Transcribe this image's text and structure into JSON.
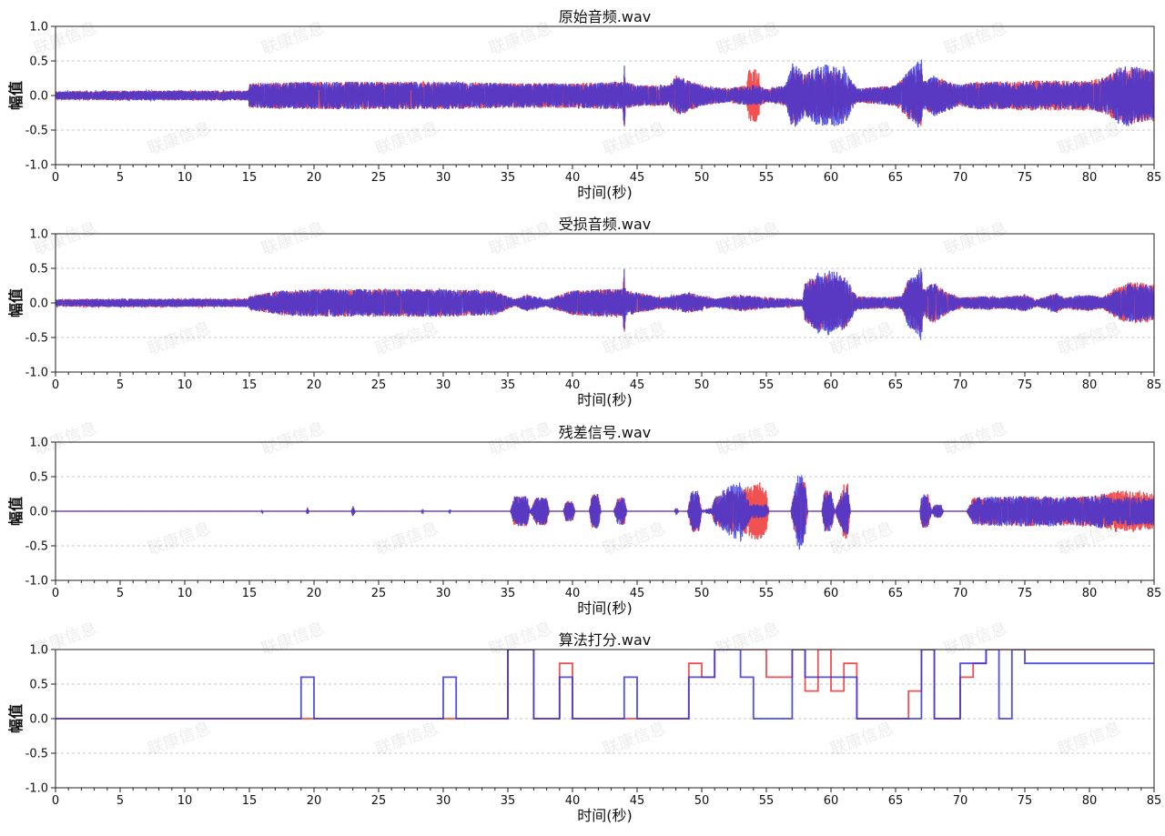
{
  "chart_data": [
    {
      "type": "line",
      "title": "原始音频.wav",
      "xlabel": "时间(秒)",
      "ylabel": "幅值",
      "xlim": [
        0,
        85
      ],
      "ylim": [
        -1.0,
        1.0
      ],
      "xticks": [
        0,
        5,
        10,
        15,
        20,
        25,
        30,
        35,
        40,
        45,
        50,
        55,
        60,
        65,
        70,
        75,
        80,
        85
      ],
      "yticks": [
        -1.0,
        -0.5,
        0.0,
        0.5,
        1.0
      ],
      "grid": true,
      "render": "waveform",
      "series": [
        {
          "color": "#ee3333",
          "x": [
            0,
            5,
            10,
            14.9,
            15,
            20,
            25,
            30,
            35,
            40,
            43.9,
            44,
            44.1,
            45,
            47.5,
            48,
            50,
            52,
            53.5,
            53.6,
            54,
            54.4,
            54.5,
            55,
            56.5,
            57,
            58,
            59,
            60,
            61,
            62,
            65,
            66,
            67,
            67.1,
            68,
            70,
            71,
            72,
            75,
            80,
            81.5,
            82,
            83,
            84,
            85
          ],
          "envelope": [
            0.06,
            0.07,
            0.07,
            0.07,
            0.18,
            0.2,
            0.2,
            0.2,
            0.18,
            0.18,
            0.2,
            0.5,
            0.2,
            0.15,
            0.15,
            0.3,
            0.15,
            0.1,
            0.15,
            0.38,
            0.38,
            0.38,
            0.15,
            0.1,
            0.15,
            0.42,
            0.3,
            0.35,
            0.35,
            0.33,
            0.1,
            0.15,
            0.35,
            0.45,
            0.2,
            0.28,
            0.15,
            0.2,
            0.2,
            0.22,
            0.22,
            0.28,
            0.38,
            0.42,
            0.4,
            0.38
          ]
        },
        {
          "color": "#3333dd",
          "x": [
            0,
            5,
            10,
            14.9,
            15,
            20,
            25,
            30,
            35,
            40,
            43.9,
            44,
            44.1,
            45,
            47.5,
            48,
            50,
            52,
            53.5,
            54.5,
            55,
            56.5,
            57,
            58,
            59,
            60,
            61,
            62,
            65,
            66,
            67,
            67.1,
            68,
            70,
            71,
            72,
            75,
            80,
            81.5,
            82,
            83,
            84,
            85
          ],
          "envelope": [
            0.06,
            0.07,
            0.07,
            0.07,
            0.18,
            0.2,
            0.2,
            0.2,
            0.18,
            0.18,
            0.2,
            0.5,
            0.2,
            0.15,
            0.15,
            0.3,
            0.15,
            0.1,
            0.15,
            0.15,
            0.1,
            0.15,
            0.5,
            0.3,
            0.45,
            0.45,
            0.43,
            0.1,
            0.15,
            0.35,
            0.55,
            0.2,
            0.3,
            0.15,
            0.2,
            0.2,
            0.2,
            0.2,
            0.28,
            0.4,
            0.45,
            0.4,
            0.36
          ]
        }
      ]
    },
    {
      "type": "line",
      "title": "受损音频.wav",
      "xlabel": "时间(秒)",
      "ylabel": "幅值",
      "xlim": [
        0,
        85
      ],
      "ylim": [
        -1.0,
        1.0
      ],
      "xticks": [
        0,
        5,
        10,
        15,
        20,
        25,
        30,
        35,
        40,
        45,
        50,
        55,
        60,
        65,
        70,
        75,
        80,
        85
      ],
      "yticks": [
        -1.0,
        -0.5,
        0.0,
        0.5,
        1.0
      ],
      "grid": true,
      "render": "waveform",
      "series": [
        {
          "color": "#ee3333",
          "x": [
            0,
            5,
            10,
            14.9,
            15,
            17.5,
            20,
            25,
            30,
            34,
            35.5,
            36.5,
            38,
            40,
            42,
            43.9,
            44,
            44.1,
            45,
            47,
            49,
            51,
            53,
            55,
            57.8,
            58,
            59,
            60,
            61,
            62,
            64,
            65.5,
            66,
            67,
            67.1,
            68,
            69,
            70,
            72,
            73,
            75,
            76,
            77.5,
            78,
            80,
            81,
            82,
            83,
            84,
            85
          ],
          "envelope": [
            0.05,
            0.06,
            0.06,
            0.06,
            0.1,
            0.18,
            0.2,
            0.2,
            0.2,
            0.18,
            0.05,
            0.12,
            0.05,
            0.18,
            0.2,
            0.2,
            0.5,
            0.2,
            0.15,
            0.08,
            0.15,
            0.06,
            0.12,
            0.08,
            0.05,
            0.3,
            0.4,
            0.42,
            0.38,
            0.1,
            0.08,
            0.1,
            0.35,
            0.45,
            0.2,
            0.3,
            0.15,
            0.08,
            0.1,
            0.08,
            0.12,
            0.05,
            0.15,
            0.08,
            0.12,
            0.08,
            0.22,
            0.3,
            0.3,
            0.28
          ]
        },
        {
          "color": "#3333dd",
          "x": [
            0,
            5,
            10,
            14.9,
            15,
            17.5,
            20,
            25,
            30,
            34,
            35.5,
            36.5,
            38,
            40,
            42,
            43.9,
            44,
            44.1,
            45,
            47,
            49,
            51,
            53,
            55,
            57.8,
            58,
            59,
            60,
            61,
            62,
            64,
            65.5,
            66,
            67,
            67.1,
            68,
            69,
            70,
            72,
            73,
            75,
            76,
            77.5,
            78,
            80,
            81,
            82,
            83,
            84,
            85
          ],
          "envelope": [
            0.05,
            0.06,
            0.06,
            0.06,
            0.1,
            0.18,
            0.2,
            0.2,
            0.2,
            0.18,
            0.05,
            0.12,
            0.05,
            0.18,
            0.2,
            0.2,
            0.5,
            0.2,
            0.15,
            0.08,
            0.15,
            0.06,
            0.12,
            0.08,
            0.05,
            0.3,
            0.45,
            0.47,
            0.43,
            0.1,
            0.08,
            0.1,
            0.35,
            0.55,
            0.2,
            0.3,
            0.15,
            0.08,
            0.1,
            0.08,
            0.12,
            0.05,
            0.15,
            0.08,
            0.12,
            0.08,
            0.2,
            0.28,
            0.28,
            0.25
          ]
        }
      ]
    },
    {
      "type": "line",
      "title": "残差信号.wav",
      "xlabel": "时间(秒)",
      "ylabel": "幅值",
      "xlim": [
        0,
        85
      ],
      "ylim": [
        -1.0,
        1.0
      ],
      "xticks": [
        0,
        5,
        10,
        15,
        20,
        25,
        30,
        35,
        40,
        45,
        50,
        55,
        60,
        65,
        70,
        75,
        80,
        85
      ],
      "yticks": [
        -1.0,
        -0.5,
        0.0,
        0.5,
        1.0
      ],
      "grid": true,
      "render": "waveform",
      "series": [
        {
          "color": "#ee3333",
          "x": [
            0,
            19.4,
            19.5,
            19.6,
            22.9,
            23,
            23.2,
            35.2,
            35.5,
            36.5,
            36.7,
            37.2,
            38,
            38.2,
            39.3,
            39.5,
            40,
            40.2,
            41.3,
            41.5,
            42,
            42.2,
            43.2,
            43.5,
            44,
            44.2,
            47.9,
            48,
            48.2,
            48.9,
            49.2,
            49.8,
            50,
            50.8,
            51,
            52,
            53,
            54,
            54.5,
            55,
            55.2,
            56.9,
            57,
            57.5,
            58,
            58.2,
            59.3,
            59.5,
            60,
            60.3,
            61,
            61.3,
            61.5,
            66.9,
            67,
            67.5,
            67.8,
            68,
            68.5,
            68.7,
            70.5,
            71,
            73,
            75,
            77,
            80,
            81,
            82,
            83,
            84,
            85
          ],
          "envelope": [
            0,
            0,
            0.06,
            0,
            0,
            0.08,
            0,
            0,
            0.22,
            0.22,
            0,
            0.2,
            0.2,
            0,
            0,
            0.15,
            0.15,
            0,
            0,
            0.25,
            0.25,
            0,
            0,
            0.2,
            0.2,
            0,
            0,
            0.06,
            0,
            0,
            0.3,
            0.3,
            0,
            0.05,
            0.2,
            0.3,
            0.3,
            0.42,
            0.42,
            0.3,
            0,
            0,
            0.15,
            0.45,
            0.45,
            0,
            0,
            0.3,
            0.3,
            0,
            0.4,
            0.4,
            0,
            0,
            0.25,
            0.25,
            0,
            0.1,
            0.1,
            0,
            0,
            0.2,
            0.2,
            0.22,
            0.2,
            0.22,
            0.25,
            0.3,
            0.3,
            0.3,
            0.25
          ]
        },
        {
          "color": "#3333dd",
          "x": [
            0,
            15.9,
            16,
            16.1,
            19.4,
            19.5,
            19.6,
            22.9,
            23,
            23.2,
            28.3,
            28.4,
            28.5,
            30.4,
            30.5,
            30.6,
            35.2,
            35.5,
            36.5,
            36.7,
            37.2,
            38,
            38.2,
            39.3,
            39.5,
            40,
            40.2,
            41.3,
            41.5,
            42,
            42.2,
            43.2,
            43.5,
            44,
            44.2,
            47.9,
            48,
            48.2,
            48.9,
            49.2,
            49.8,
            50,
            50.8,
            51,
            52,
            53,
            53.8,
            54,
            54.5,
            55,
            55.2,
            56.9,
            57,
            57.5,
            58,
            58.2,
            59.3,
            59.5,
            60,
            60.3,
            61,
            61.3,
            61.5,
            66.9,
            67,
            67.5,
            67.8,
            68,
            68.5,
            68.7,
            70.5,
            71,
            73,
            75,
            77,
            79,
            80,
            81,
            82,
            83,
            84,
            85
          ],
          "envelope": [
            0,
            0,
            0.03,
            0,
            0,
            0.06,
            0,
            0,
            0.08,
            0,
            0,
            0.05,
            0,
            0,
            0.05,
            0,
            0,
            0.22,
            0.22,
            0,
            0.2,
            0.2,
            0,
            0,
            0.15,
            0.15,
            0,
            0,
            0.25,
            0.25,
            0,
            0,
            0.2,
            0.2,
            0,
            0,
            0.06,
            0,
            0,
            0.3,
            0.3,
            0,
            0.05,
            0.2,
            0.35,
            0.45,
            0.1,
            0.1,
            0.1,
            0.1,
            0,
            0,
            0.15,
            0.58,
            0.45,
            0,
            0,
            0.3,
            0.3,
            0,
            0.35,
            0.35,
            0,
            0,
            0.25,
            0.25,
            0,
            0.1,
            0.1,
            0,
            0,
            0.2,
            0.22,
            0.22,
            0.22,
            0.2,
            0.22,
            0.25,
            0.18,
            0.22,
            0.2,
            0.2
          ]
        }
      ]
    },
    {
      "type": "line",
      "title": "算法打分.wav",
      "xlabel": "时间(秒)",
      "ylabel": "幅值",
      "xlim": [
        0,
        85
      ],
      "ylim": [
        -1.0,
        1.0
      ],
      "xticks": [
        0,
        5,
        10,
        15,
        20,
        25,
        30,
        35,
        40,
        45,
        50,
        55,
        60,
        65,
        70,
        75,
        80,
        85
      ],
      "yticks": [
        -1.0,
        -0.5,
        0.0,
        0.5,
        1.0
      ],
      "grid": true,
      "render": "step",
      "series": [
        {
          "color": "#ee3333",
          "x": [
            0,
            35,
            37,
            39,
            40,
            49,
            50,
            51,
            55,
            57,
            58,
            59,
            60,
            61,
            62,
            66,
            67,
            68,
            70,
            71,
            72,
            85
          ],
          "y": [
            0,
            1.0,
            0,
            0.8,
            0,
            0.8,
            0.6,
            1.0,
            0.6,
            1.0,
            0.4,
            1.0,
            0.4,
            0.8,
            0,
            0.4,
            1.0,
            0,
            0.6,
            0.8,
            1.0,
            1.0
          ]
        },
        {
          "color": "#3333dd",
          "x": [
            0,
            19,
            20,
            30,
            31,
            35,
            37,
            39,
            40,
            44,
            45,
            49,
            51,
            53,
            54,
            56,
            57,
            58,
            62,
            67,
            68,
            70,
            72,
            73,
            74,
            75,
            85
          ],
          "y": [
            0,
            0.6,
            0,
            0.6,
            0,
            1.0,
            0,
            0.6,
            0,
            0.6,
            0,
            0.6,
            1.0,
            0.6,
            0,
            0,
            1.0,
            0.6,
            0,
            1.0,
            0,
            0.8,
            1.0,
            0,
            1.0,
            0.8,
            0.8
          ]
        }
      ]
    }
  ]
}
